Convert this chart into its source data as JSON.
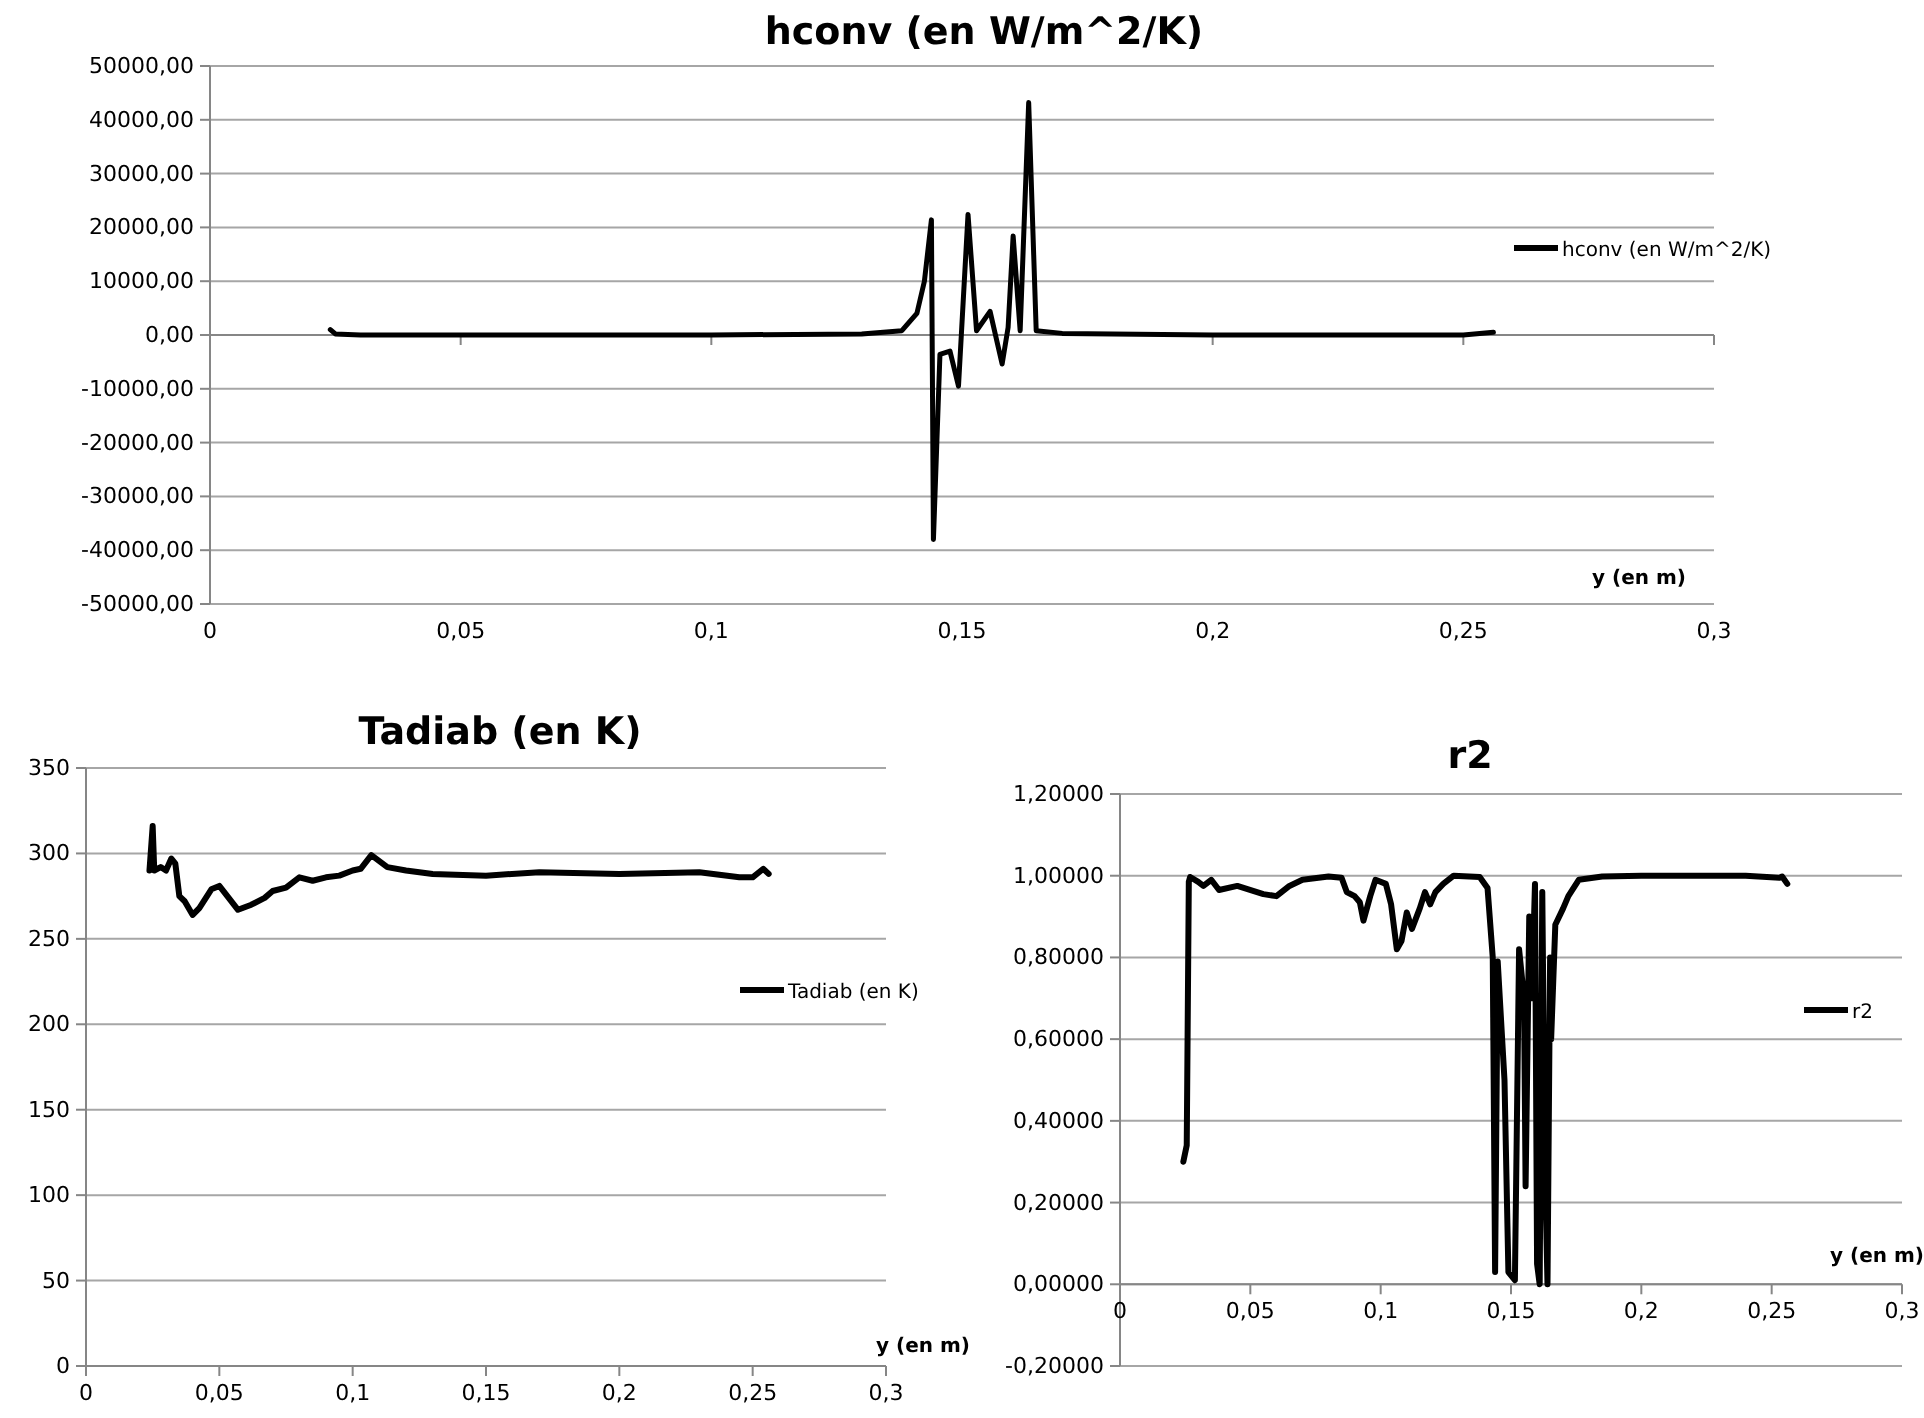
{
  "chart_data": [
    {
      "type": "line",
      "title": "hconv (en W/m^2/K)",
      "xlabel": "y (en m)",
      "legend": "right",
      "grid": "y",
      "marker": "none",
      "line_style": "solid",
      "xlim": [
        0,
        0.3
      ],
      "xticks": [
        {
          "value": 0,
          "label": "0"
        },
        {
          "value": 0.05,
          "label": "0,05"
        },
        {
          "value": 0.1,
          "label": "0,1"
        },
        {
          "value": 0.15,
          "label": "0,15"
        },
        {
          "value": 0.2,
          "label": "0,2"
        },
        {
          "value": 0.25,
          "label": "0,25"
        },
        {
          "value": 0.3,
          "label": "0,3"
        }
      ],
      "ylim": [
        -50000,
        50000
      ],
      "yticks": [
        {
          "value": -50000,
          "label": "-50000,00"
        },
        {
          "value": -40000,
          "label": "-40000,00"
        },
        {
          "value": -30000,
          "label": "-30000,00"
        },
        {
          "value": -20000,
          "label": "-20000,00"
        },
        {
          "value": -10000,
          "label": "-10000,00"
        },
        {
          "value": 0,
          "label": "0,00"
        },
        {
          "value": 10000,
          "label": "10000,00"
        },
        {
          "value": 20000,
          "label": "20000,00"
        },
        {
          "value": 30000,
          "label": "30000,00"
        },
        {
          "value": 40000,
          "label": "40000,00"
        },
        {
          "value": 50000,
          "label": "50000,00"
        }
      ],
      "series": [
        {
          "name": "hconv (en W/m^2/K)",
          "color": "#000000",
          "x": [
            0.024,
            0.025,
            0.03,
            0.06,
            0.1,
            0.13,
            0.138,
            0.141,
            0.1425,
            0.1439,
            0.1443,
            0.1456,
            0.1476,
            0.1493,
            0.1512,
            0.1529,
            0.1556,
            0.158,
            0.1592,
            0.1602,
            0.1616,
            0.1633,
            0.1648,
            0.17,
            0.2,
            0.25,
            0.256
          ],
          "values": [
            1000,
            200,
            0,
            0,
            0,
            200,
            800,
            4000,
            10000,
            21400,
            -38000,
            -3600,
            -3000,
            -9500,
            22400,
            800,
            4400,
            -5400,
            1400,
            18400,
            800,
            43200,
            800,
            300,
            0,
            0,
            500
          ]
        }
      ]
    },
    {
      "type": "line",
      "title": "Tadiab (en K)",
      "xlabel": "y (en m)",
      "legend": "right",
      "grid": "y",
      "marker": "none",
      "line_style": "solid",
      "xlim": [
        0,
        0.3
      ],
      "xticks": [
        {
          "value": 0,
          "label": "0"
        },
        {
          "value": 0.05,
          "label": "0,05"
        },
        {
          "value": 0.1,
          "label": "0,1"
        },
        {
          "value": 0.15,
          "label": "0,15"
        },
        {
          "value": 0.2,
          "label": "0,2"
        },
        {
          "value": 0.25,
          "label": "0,25"
        },
        {
          "value": 0.3,
          "label": "0,3"
        }
      ],
      "ylim": [
        0,
        350
      ],
      "yticks": [
        0,
        50,
        100,
        150,
        200,
        250,
        300,
        350
      ],
      "series": [
        {
          "name": "Tadiab (en K)",
          "color": "#000000",
          "x": [
            0.0238,
            0.025,
            0.0256,
            0.028,
            0.03,
            0.032,
            0.0335,
            0.035,
            0.037,
            0.04,
            0.0425,
            0.047,
            0.05,
            0.053,
            0.057,
            0.062,
            0.067,
            0.07,
            0.075,
            0.08,
            0.085,
            0.09,
            0.095,
            0.1,
            0.103,
            0.107,
            0.113,
            0.12,
            0.13,
            0.15,
            0.17,
            0.2,
            0.23,
            0.245,
            0.25,
            0.254,
            0.256
          ],
          "values": [
            290,
            316,
            290,
            292,
            290,
            297,
            294,
            275,
            272,
            264,
            268,
            279,
            281,
            275,
            267,
            270,
            274,
            278,
            280,
            286,
            284,
            286,
            287,
            290,
            291,
            299,
            292,
            290,
            288,
            287,
            289,
            288,
            289,
            286,
            286,
            291,
            288
          ]
        }
      ]
    },
    {
      "type": "line",
      "title": "r2",
      "xlabel": "y (en m)",
      "legend": "right",
      "grid": "y",
      "marker": "none",
      "line_style": "solid",
      "xlim": [
        0,
        0.3
      ],
      "xticks": [
        {
          "value": 0,
          "label": "0"
        },
        {
          "value": 0.05,
          "label": "0,05"
        },
        {
          "value": 0.1,
          "label": "0,1"
        },
        {
          "value": 0.15,
          "label": "0,15"
        },
        {
          "value": 0.2,
          "label": "0,2"
        },
        {
          "value": 0.25,
          "label": "0,25"
        },
        {
          "value": 0.3,
          "label": "0,3"
        }
      ],
      "ylim": [
        -0.2,
        1.2
      ],
      "yticks": [
        {
          "value": -0.2,
          "label": "-0,20000"
        },
        {
          "value": 0,
          "label": "0,00000"
        },
        {
          "value": 0.2,
          "label": "0,20000"
        },
        {
          "value": 0.4,
          "label": "0,40000"
        },
        {
          "value": 0.6,
          "label": "0,60000"
        },
        {
          "value": 0.8,
          "label": "0,80000"
        },
        {
          "value": 1,
          "label": "1,00000"
        },
        {
          "value": 1.2,
          "label": "1,20000"
        }
      ],
      "series": [
        {
          "name": "r2",
          "color": "#000000",
          "x": [
            0.0243,
            0.0256,
            0.0264,
            0.0269,
            0.03,
            0.032,
            0.035,
            0.038,
            0.045,
            0.055,
            0.06,
            0.065,
            0.07,
            0.08,
            0.085,
            0.087,
            0.09,
            0.092,
            0.0934,
            0.096,
            0.098,
            0.102,
            0.104,
            0.1062,
            0.108,
            0.11,
            0.112,
            0.115,
            0.117,
            0.119,
            0.121,
            0.124,
            0.128,
            0.138,
            0.141,
            0.143,
            0.1439,
            0.1449,
            0.1475,
            0.149,
            0.1515,
            0.1531,
            0.155,
            0.1556,
            0.157,
            0.158,
            0.1592,
            0.16,
            0.161,
            0.162,
            0.163,
            0.164,
            0.165,
            0.1654,
            0.167,
            0.17,
            0.172,
            0.176,
            0.185,
            0.2,
            0.24,
            0.253,
            0.254,
            0.256
          ],
          "values": [
            0.3,
            0.34,
            0.985,
            0.997,
            0.985,
            0.975,
            0.99,
            0.965,
            0.975,
            0.955,
            0.95,
            0.975,
            0.99,
            0.998,
            0.995,
            0.96,
            0.95,
            0.935,
            0.89,
            0.95,
            0.99,
            0.98,
            0.93,
            0.82,
            0.84,
            0.91,
            0.87,
            0.92,
            0.96,
            0.93,
            0.96,
            0.98,
            1,
            0.997,
            0.97,
            0.8,
            0.03,
            0.79,
            0.5,
            0.03,
            0.01,
            0.82,
            0.7,
            0.24,
            0.9,
            0.7,
            0.98,
            0.05,
            0,
            0.96,
            0.3,
            0,
            0.8,
            0.6,
            0.88,
            0.92,
            0.95,
            0.99,
            0.998,
            1,
            1,
            0.995,
            0.998,
            0.98
          ]
        }
      ]
    }
  ]
}
